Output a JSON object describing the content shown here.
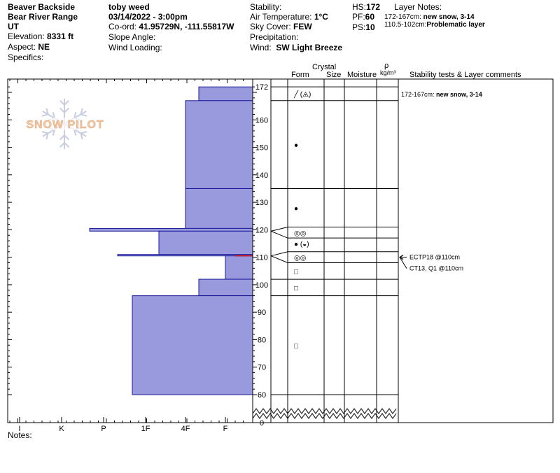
{
  "header": {
    "location": "Beaver Backside",
    "range": "Bear River Range",
    "state": "UT",
    "elevation_label": "Elevation:",
    "elevation_value": "8331 ft",
    "aspect_label": "Aspect:",
    "aspect_value": "NE",
    "specifics_label": "Specifics:",
    "observer": "toby weed",
    "datetime": "03/14/2022 - 3:00pm",
    "coord_label": "Co-ord:",
    "coord_value": "41.95729N, -111.55817W",
    "slope_label": "Slope Angle:",
    "wind_loading_label": "Wind Loading:",
    "stability_label": "Stability:",
    "air_temp_label": "Air Temperature:",
    "air_temp_value": "1°C",
    "sky_label": "Sky Cover:",
    "sky_value": "FEW",
    "precip_label": "Precipitation:",
    "wind_label": "Wind:",
    "wind_value": "SW Light Breeze",
    "hs_label": "HS:",
    "hs_value": "172",
    "pf_label": "PF:",
    "pf_value": "60",
    "ps_label": "PS:",
    "ps_value": "10",
    "layer_notes_label": "Layer Notes:",
    "layer_notes": [
      {
        "range": "172-167cm:",
        "text": "new snow, 3-14"
      },
      {
        "range": "110.5-102cm:",
        "text": "Problematic layer"
      }
    ]
  },
  "columns": {
    "crystal": "Crystal",
    "form": "Form",
    "size": "Size",
    "moisture": "Moisture",
    "rho": "ρ",
    "density_unit": "kg/m³",
    "stability_comments": "Stability tests & Layer comments"
  },
  "logo_text": "SNOW PILOT",
  "notes_label": "Notes:",
  "comments": [
    {
      "depth": 169.5,
      "range": "172-167cm:",
      "text": "new snow, 3-14"
    }
  ],
  "stability_tests": [
    {
      "depth": 110,
      "text": "ECTP18 @110cm"
    },
    {
      "depth": 110,
      "text": "CT13, Q1 @110cm"
    }
  ],
  "colors": {
    "layer_fill": "#9999dd",
    "layer_stroke": "#1a1a99",
    "highlight": "#cc0000",
    "logo": "#c8cde0"
  },
  "chart_data": {
    "type": "snow_profile",
    "y_axis": {
      "min": 0,
      "max": 172,
      "ticks": [
        172,
        160,
        150,
        140,
        130,
        120,
        110,
        100,
        90,
        80,
        70,
        60,
        0
      ]
    },
    "hardness_ticks": [
      "I",
      "K",
      "P",
      "1F",
      "4F",
      "F"
    ],
    "hardness_layers": [
      {
        "top": 172,
        "bottom": 167,
        "hardness": "4F+"
      },
      {
        "top": 167,
        "bottom": 135,
        "hardness": "4F"
      },
      {
        "top": 135,
        "bottom": 120.5,
        "hardness": "4F"
      },
      {
        "top": 120.5,
        "bottom": 119.5,
        "hardness": "P-"
      },
      {
        "top": 119.5,
        "bottom": 111,
        "hardness": "1F+"
      },
      {
        "top": 111,
        "bottom": 110.5,
        "hardness": "P+"
      },
      {
        "top": 110.5,
        "bottom": 102,
        "hardness": "F"
      },
      {
        "top": 102,
        "bottom": 96,
        "hardness": "4F+"
      },
      {
        "top": 96,
        "bottom": 60,
        "hardness": "1F-"
      }
    ],
    "layer_boundaries": [
      172,
      167,
      135,
      121,
      117,
      112,
      108,
      102,
      96,
      60
    ],
    "crystal_forms": [
      {
        "depth": 169.5,
        "symbol": "╱ (⨹)"
      },
      {
        "depth": 151,
        "symbol": "●"
      },
      {
        "depth": 128,
        "symbol": "●"
      },
      {
        "depth": 119,
        "symbol": "◎◎"
      },
      {
        "depth": 115,
        "symbol": "● (◒)"
      },
      {
        "depth": 110,
        "symbol": "◎◎"
      },
      {
        "depth": 105,
        "symbol": "□"
      },
      {
        "depth": 99,
        "symbol": "□"
      },
      {
        "depth": 78,
        "symbol": "□"
      }
    ]
  }
}
